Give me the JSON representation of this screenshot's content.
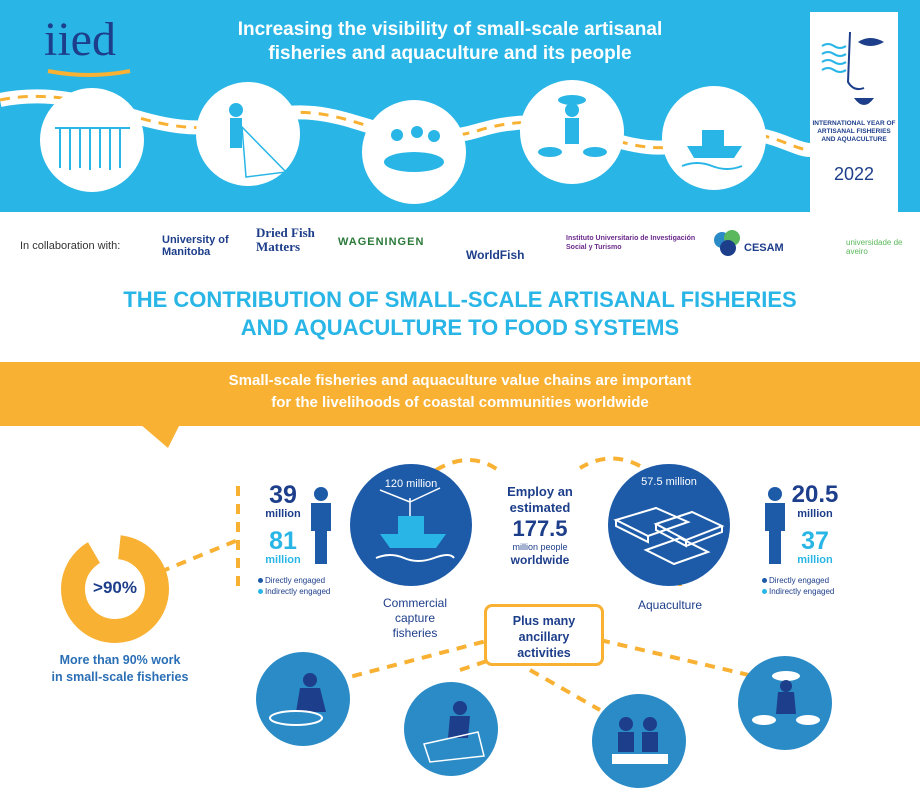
{
  "header": {
    "logo_text": "iied",
    "title_line1": "Increasing the visibility of small-scale artisanal",
    "title_line2": "fisheries and aquaculture and its people",
    "iy_text_line1": "INTERNATIONAL YEAR OF",
    "iy_text_line2": "ARTISANAL FISHERIES",
    "iy_text_line3": "AND AQUACULTURE",
    "iy_year": "2022"
  },
  "collab": {
    "label": "In collaboration with:",
    "partners": [
      "University of Manitoba",
      "Dried Fish Matters",
      "WAGENINGEN",
      "WorldFish",
      "Instituto Universitario de Investigación Social y Turismo",
      "CESAM",
      "universidade de aveiro"
    ]
  },
  "main_title": {
    "line1": "THE CONTRIBUTION OF SMALL-SCALE ARTISANAL FISHERIES",
    "line2": "AND AQUACULTURE TO FOOD SYSTEMS"
  },
  "banner": {
    "line1": "Small-scale fisheries and aquaculture value chains are important",
    "line2": "for the livelihoods of coastal communities worldwide"
  },
  "donut": {
    "label": ">90%",
    "caption_line1": "More than 90% work",
    "caption_line2": "in small-scale fisheries",
    "percent": 90
  },
  "capture": {
    "direct_num": "39",
    "direct_unit": "million",
    "indirect_num": "81",
    "indirect_unit": "million",
    "legend_direct": "Directly engaged",
    "legend_indirect": "Indirectly engaged",
    "circle_value": "120 million",
    "caption_line1": "Commercial",
    "caption_line2": "capture",
    "caption_line3": "fisheries"
  },
  "center": {
    "line1": "Employ an",
    "line2": "estimated",
    "num": "177.5",
    "line3": "million people",
    "line4": "worldwide"
  },
  "aquaculture": {
    "circle_value": "57.5 million",
    "caption": "Aquaculture",
    "direct_num": "20.5",
    "direct_unit": "million",
    "indirect_num": "37",
    "indirect_unit": "million",
    "legend_direct": "Directly engaged",
    "legend_indirect": "Indirectly engaged"
  },
  "ancillary": {
    "line1": "Plus many",
    "line2": "ancillary",
    "line3": "activities"
  },
  "colors": {
    "sky": "#29b6e6",
    "navy": "#1d3e8a",
    "orange": "#f8b133",
    "circle_blue": "#1d5ba8"
  }
}
